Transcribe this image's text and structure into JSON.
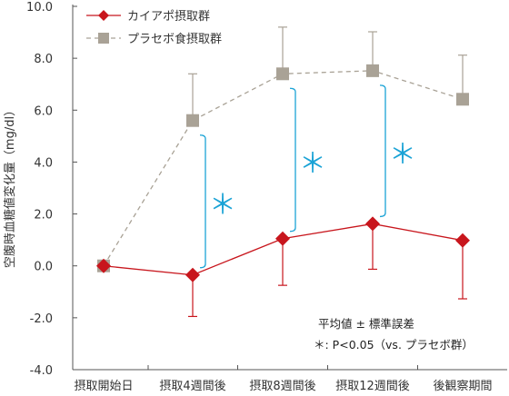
{
  "chart_data": {
    "type": "line",
    "categories": [
      "摂取開始日",
      "摂取4週間後",
      "摂取8週間後",
      "摂取12週間後",
      "後観察期間"
    ],
    "ylabel": "空腹時血糖値変化量（mg/dl）",
    "ylim": [
      -4.0,
      10.0
    ],
    "yticks": [
      "10.0",
      "8.0",
      "6.0",
      "4.0",
      "2.0",
      "0.0",
      "-2.0",
      "-4.0"
    ],
    "ytick_values": [
      10,
      8,
      6,
      4,
      2,
      0,
      -2,
      -4
    ],
    "grid": false,
    "legend_position": "top-left",
    "series": [
      {
        "name": "カイアポ摂取群",
        "values": [
          0.0,
          -0.35,
          1.05,
          1.62,
          0.98
        ],
        "error_upper": [
          0.0,
          0.0,
          0.0,
          0.0,
          0.0
        ],
        "error_lower": [
          0.0,
          1.6,
          1.8,
          1.75,
          2.25
        ],
        "color": "#c8161d",
        "marker": "diamond",
        "line_style": "solid"
      },
      {
        "name": "プラセボ食摂取群",
        "values": [
          0.0,
          5.6,
          7.4,
          7.52,
          6.42
        ],
        "error_upper": [
          0.0,
          1.8,
          1.8,
          1.5,
          1.7
        ],
        "error_lower": [
          0.0,
          0.0,
          0.0,
          0.0,
          0.0
        ],
        "color": "#a9a296",
        "marker": "square",
        "line_style": "dashed"
      }
    ],
    "significance": {
      "symbol": "＊",
      "color": "#1ba3d6",
      "at_categories": [
        1,
        2,
        3
      ]
    },
    "annotations": [
      "平均値 ± 標準誤差",
      "＊: P<0.05（vs. プラセボ群）"
    ]
  }
}
